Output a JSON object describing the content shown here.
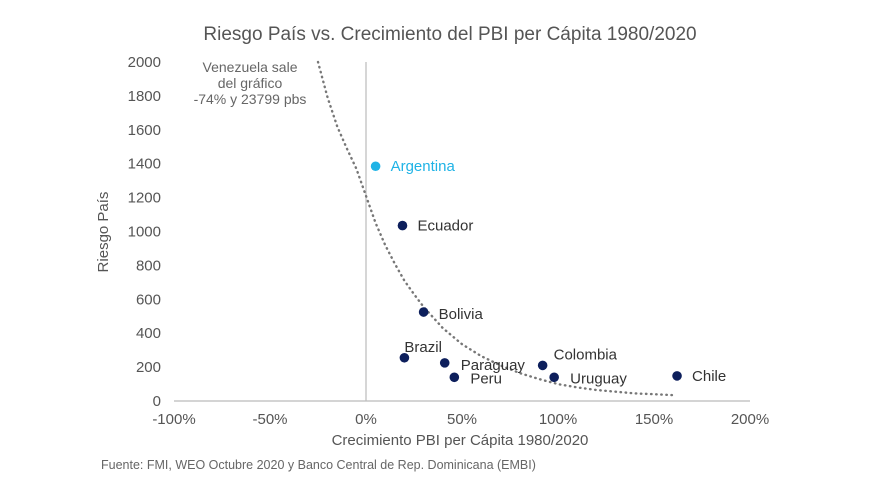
{
  "chart_data": {
    "type": "scatter",
    "title": "Riesgo País vs. Crecimiento del PBI per Cápita 1980/2020",
    "xlabel": "Crecimiento PBI per Cápita 1980/2020",
    "ylabel": "Riesgo País",
    "xlim": [
      -100,
      200
    ],
    "ylim": [
      0,
      2000
    ],
    "x_ticks": [
      {
        "value": -100,
        "label": "-100%"
      },
      {
        "value": -50,
        "label": "-50%"
      },
      {
        "value": 0,
        "label": "0%"
      },
      {
        "value": 50,
        "label": "50%"
      },
      {
        "value": 100,
        "label": "100%"
      },
      {
        "value": 150,
        "label": "150%"
      },
      {
        "value": 200,
        "label": "200%"
      }
    ],
    "y_ticks": [
      {
        "value": 0,
        "label": "0"
      },
      {
        "value": 200,
        "label": "200"
      },
      {
        "value": 400,
        "label": "400"
      },
      {
        "value": 600,
        "label": "600"
      },
      {
        "value": 800,
        "label": "800"
      },
      {
        "value": 1000,
        "label": "1000"
      },
      {
        "value": 1200,
        "label": "1200"
      },
      {
        "value": 1400,
        "label": "1400"
      },
      {
        "value": 1600,
        "label": "1600"
      },
      {
        "value": 1800,
        "label": "1800"
      },
      {
        "value": 2000,
        "label": "2000"
      }
    ],
    "points": [
      {
        "label": "Argentina",
        "x": 5,
        "y": 1385,
        "color": "#1fb3e6",
        "label_pos": "right"
      },
      {
        "label": "Ecuador",
        "x": 19,
        "y": 1035,
        "color": "#0d1f5c",
        "label_pos": "right"
      },
      {
        "label": "Bolivia",
        "x": 30,
        "y": 525,
        "color": "#0d1f5c",
        "label_pos": "right-below"
      },
      {
        "label": "Brazil",
        "x": 20,
        "y": 255,
        "color": "#0d1f5c",
        "label_pos": "above-right"
      },
      {
        "label": "Paraguay",
        "x": 41,
        "y": 225,
        "color": "#0d1f5c",
        "label_pos": "right"
      },
      {
        "label": "Peru",
        "x": 46,
        "y": 140,
        "color": "#0d1f5c",
        "label_pos": "right"
      },
      {
        "label": "Colombia",
        "x": 92,
        "y": 210,
        "color": "#0d1f5c",
        "label_pos": "above-right"
      },
      {
        "label": "Uruguay",
        "x": 98,
        "y": 140,
        "color": "#0d1f5c",
        "label_pos": "right"
      },
      {
        "label": "Chile",
        "x": 162,
        "y": 148,
        "color": "#0d1f5c",
        "label_pos": "right"
      }
    ],
    "trendline": {
      "style": "dotted",
      "color": "#777777",
      "points": [
        [
          -25,
          2000
        ],
        [
          -20,
          1790
        ],
        [
          -15,
          1620
        ],
        [
          -10,
          1490
        ],
        [
          -5,
          1370
        ],
        [
          0,
          1210
        ],
        [
          5,
          1050
        ],
        [
          10,
          920
        ],
        [
          15,
          810
        ],
        [
          20,
          710
        ],
        [
          25,
          630
        ],
        [
          30,
          555
        ],
        [
          40,
          430
        ],
        [
          50,
          335
        ],
        [
          60,
          265
        ],
        [
          70,
          210
        ],
        [
          80,
          165
        ],
        [
          90,
          130
        ],
        [
          100,
          100
        ],
        [
          110,
          80
        ],
        [
          120,
          65
        ],
        [
          130,
          55
        ],
        [
          140,
          45
        ],
        [
          150,
          40
        ],
        [
          160,
          35
        ]
      ]
    },
    "annotation": {
      "lines": [
        "Venezuela sale",
        "del gráfico",
        "-74% y 23799 pbs"
      ]
    },
    "grid": false,
    "legend": "none"
  },
  "source_note": "Fuente: FMI, WEO Octubre 2020 y Banco Central de Rep. Dominicana (EMBI)"
}
